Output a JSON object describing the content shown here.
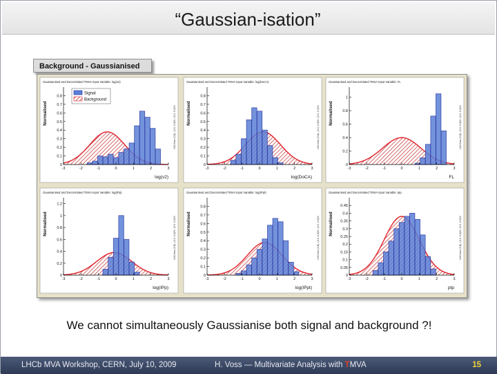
{
  "slide": {
    "title": "“Gaussian-isation”",
    "tab_label": "Background - Gaussianised",
    "caption": "We cannot simultaneously Gaussianise both signal and background ?!"
  },
  "footer": {
    "left": "LHCb MVA Workshop, CERN, July 10, 2009",
    "center_prefix": "H. Voss — Multivariate Analysis with ",
    "center_t": "T",
    "center_suffix": "MVA",
    "page": "15"
  },
  "colors": {
    "signal_fill": "#5b7fd6",
    "signal_line": "#1d2f9e",
    "background_line": "#e0202a",
    "background_hatch": "#c23030",
    "panel_bg": "#e6e1c9",
    "frame_bg": "#ffffff"
  },
  "chart_data": [
    {
      "type": "bar",
      "title": "Gaussianised and Decorrelated TMVA Input Variable: log(v2)",
      "xlabel": "log(v2)",
      "ylabel": "Normalised",
      "xlim": [
        -3,
        3
      ],
      "ylim": [
        0,
        0.9
      ],
      "xticks": [
        "-3",
        "-2",
        "-1",
        "0",
        "1",
        "2",
        "3"
      ],
      "yticks": [
        "0",
        "0.1",
        "0.2",
        "0.3",
        "0.4",
        "0.5",
        "0.6",
        "0.7",
        "0.8"
      ],
      "overflow_note": "U/O-flow (S,B): (0.0, 0.0)% / (0.0, 0.0)%",
      "legend": [
        "Signal",
        "Background"
      ],
      "legend_position": "top-left",
      "series": [
        {
          "name": "Signal",
          "x": [
            -1.5,
            -1.2,
            -0.9,
            -0.6,
            -0.3,
            0.0,
            0.3,
            0.6,
            0.9,
            1.2,
            1.5,
            1.8,
            2.1,
            2.4
          ],
          "values": [
            0.02,
            0.04,
            0.1,
            0.09,
            0.12,
            0.08,
            0.14,
            0.18,
            0.25,
            0.45,
            0.62,
            0.55,
            0.42,
            0.18
          ]
        },
        {
          "name": "Background",
          "mean": -0.5,
          "sigma": 1.0,
          "peak": 0.38
        }
      ]
    },
    {
      "type": "bar",
      "title": "Gaussianised and Decorrelated TMVA Input Variable: log(DoCA)",
      "xlabel": "log(DoCA)",
      "ylabel": "Normalised",
      "xlim": [
        -3,
        3
      ],
      "ylim": [
        0,
        0.9
      ],
      "xticks": [
        "-3",
        "-2",
        "-1",
        "0",
        "1",
        "2",
        "3"
      ],
      "yticks": [
        "0",
        "0.1",
        "0.2",
        "0.3",
        "0.4",
        "0.5",
        "0.6",
        "0.7",
        "0.8"
      ],
      "overflow_note": "U/O-flow (S,B): (0.0, 0.0)% / (0.0, 0.0)%",
      "series": [
        {
          "name": "Signal",
          "x": [
            -1.5,
            -1.2,
            -0.9,
            -0.6,
            -0.3,
            0.0,
            0.3,
            0.6,
            0.9,
            1.2
          ],
          "values": [
            0.05,
            0.12,
            0.3,
            0.52,
            0.66,
            0.62,
            0.4,
            0.22,
            0.08,
            0.02
          ]
        },
        {
          "name": "Background",
          "mean": 0.2,
          "sigma": 1.0,
          "peak": 0.38
        }
      ]
    },
    {
      "type": "bar",
      "title": "Gaussianised and Decorrelated TMVA Input Variable: FL",
      "xlabel": "FL",
      "ylabel": "Normalised",
      "xlim": [
        -3,
        3
      ],
      "ylim": [
        0,
        1.15
      ],
      "xticks": [
        "-3",
        "-2",
        "-1",
        "0",
        "1",
        "2",
        "3"
      ],
      "yticks": [
        "0",
        "0.2",
        "0.4",
        "0.6",
        "0.8",
        "1"
      ],
      "overflow_note": "U/O-flow (S,B): (0.0, 0.0)% / (0.0, 0.0)%",
      "series": [
        {
          "name": "Signal",
          "x": [
            0.9,
            1.2,
            1.5,
            1.8,
            2.1,
            2.4
          ],
          "values": [
            0.02,
            0.1,
            0.3,
            0.72,
            1.05,
            0.5
          ]
        },
        {
          "name": "Background",
          "mean": 0.0,
          "sigma": 1.1,
          "peak": 0.4
        }
      ]
    },
    {
      "type": "bar",
      "title": "Gaussianised and Decorrelated TMVA Input Variable: log(IPp)",
      "xlabel": "log(IPp)",
      "ylabel": "Normalised",
      "xlim": [
        -3,
        3
      ],
      "ylim": [
        0,
        1.3
      ],
      "xticks": [
        "-3",
        "-2",
        "-1",
        "0",
        "1",
        "2",
        "3"
      ],
      "yticks": [
        "0",
        "0.2",
        "0.4",
        "0.6",
        "0.8",
        "1",
        "1.2"
      ],
      "overflow_note": "U/O-flow (S,B): (0.0, 0.0)% / (0.0, 0.0)%",
      "series": [
        {
          "name": "Signal",
          "x": [
            -0.6,
            -0.3,
            0.0,
            0.3,
            0.6,
            0.9,
            1.2
          ],
          "values": [
            0.1,
            0.3,
            0.62,
            1.0,
            0.6,
            0.22,
            0.05
          ]
        },
        {
          "name": "Background",
          "mean": -0.1,
          "sigma": 1.0,
          "peak": 0.38
        }
      ]
    },
    {
      "type": "bar",
      "title": "Gaussianised and Decorrelated TMVA Input Variable: log(IPpt)",
      "xlabel": "log(IPpt)",
      "ylabel": "Normalised",
      "xlim": [
        -3,
        3
      ],
      "ylim": [
        0,
        0.9
      ],
      "xticks": [
        "-3",
        "-2",
        "-1",
        "0",
        "1",
        "2",
        "3"
      ],
      "yticks": [
        "0",
        "0.1",
        "0.2",
        "0.3",
        "0.4",
        "0.5",
        "0.6",
        "0.7",
        "0.8"
      ],
      "overflow_note": "U/O-flow (S,B): (0.0, 0.0)% / (0.0, 0.0)%",
      "series": [
        {
          "name": "Signal",
          "x": [
            -1.2,
            -0.9,
            -0.6,
            -0.3,
            0.0,
            0.3,
            0.6,
            0.9,
            1.2,
            1.5,
            1.8,
            2.1
          ],
          "values": [
            0.02,
            0.05,
            0.12,
            0.2,
            0.3,
            0.42,
            0.58,
            0.66,
            0.62,
            0.4,
            0.15,
            0.04
          ]
        },
        {
          "name": "Background",
          "mean": 0.3,
          "sigma": 1.0,
          "peak": 0.38
        }
      ]
    },
    {
      "type": "bar",
      "title": "Gaussianised and Decorrelated TMVA Input Variable: ptp",
      "xlabel": "ptp",
      "ylabel": "Normalised",
      "xlim": [
        -3,
        3
      ],
      "ylim": [
        0,
        0.5
      ],
      "xticks": [
        "-3",
        "-2",
        "-1",
        "0",
        "1",
        "2",
        "3"
      ],
      "yticks": [
        "0",
        "0.05",
        "0.1",
        "0.15",
        "0.2",
        "0.25",
        "0.3",
        "0.35",
        "0.4",
        "0.45"
      ],
      "overflow_note": "U/O-flow (S,B): (0.0, 0.0)% / (0.0, 0.0)%",
      "series": [
        {
          "name": "Signal",
          "x": [
            -1.5,
            -1.2,
            -0.9,
            -0.6,
            -0.3,
            0.0,
            0.3,
            0.6,
            0.9,
            1.2,
            1.5,
            1.8
          ],
          "values": [
            0.03,
            0.08,
            0.15,
            0.22,
            0.3,
            0.34,
            0.38,
            0.4,
            0.36,
            0.26,
            0.12,
            0.04
          ]
        },
        {
          "name": "Background",
          "mean": 0.0,
          "sigma": 1.0,
          "peak": 0.38
        }
      ]
    }
  ]
}
